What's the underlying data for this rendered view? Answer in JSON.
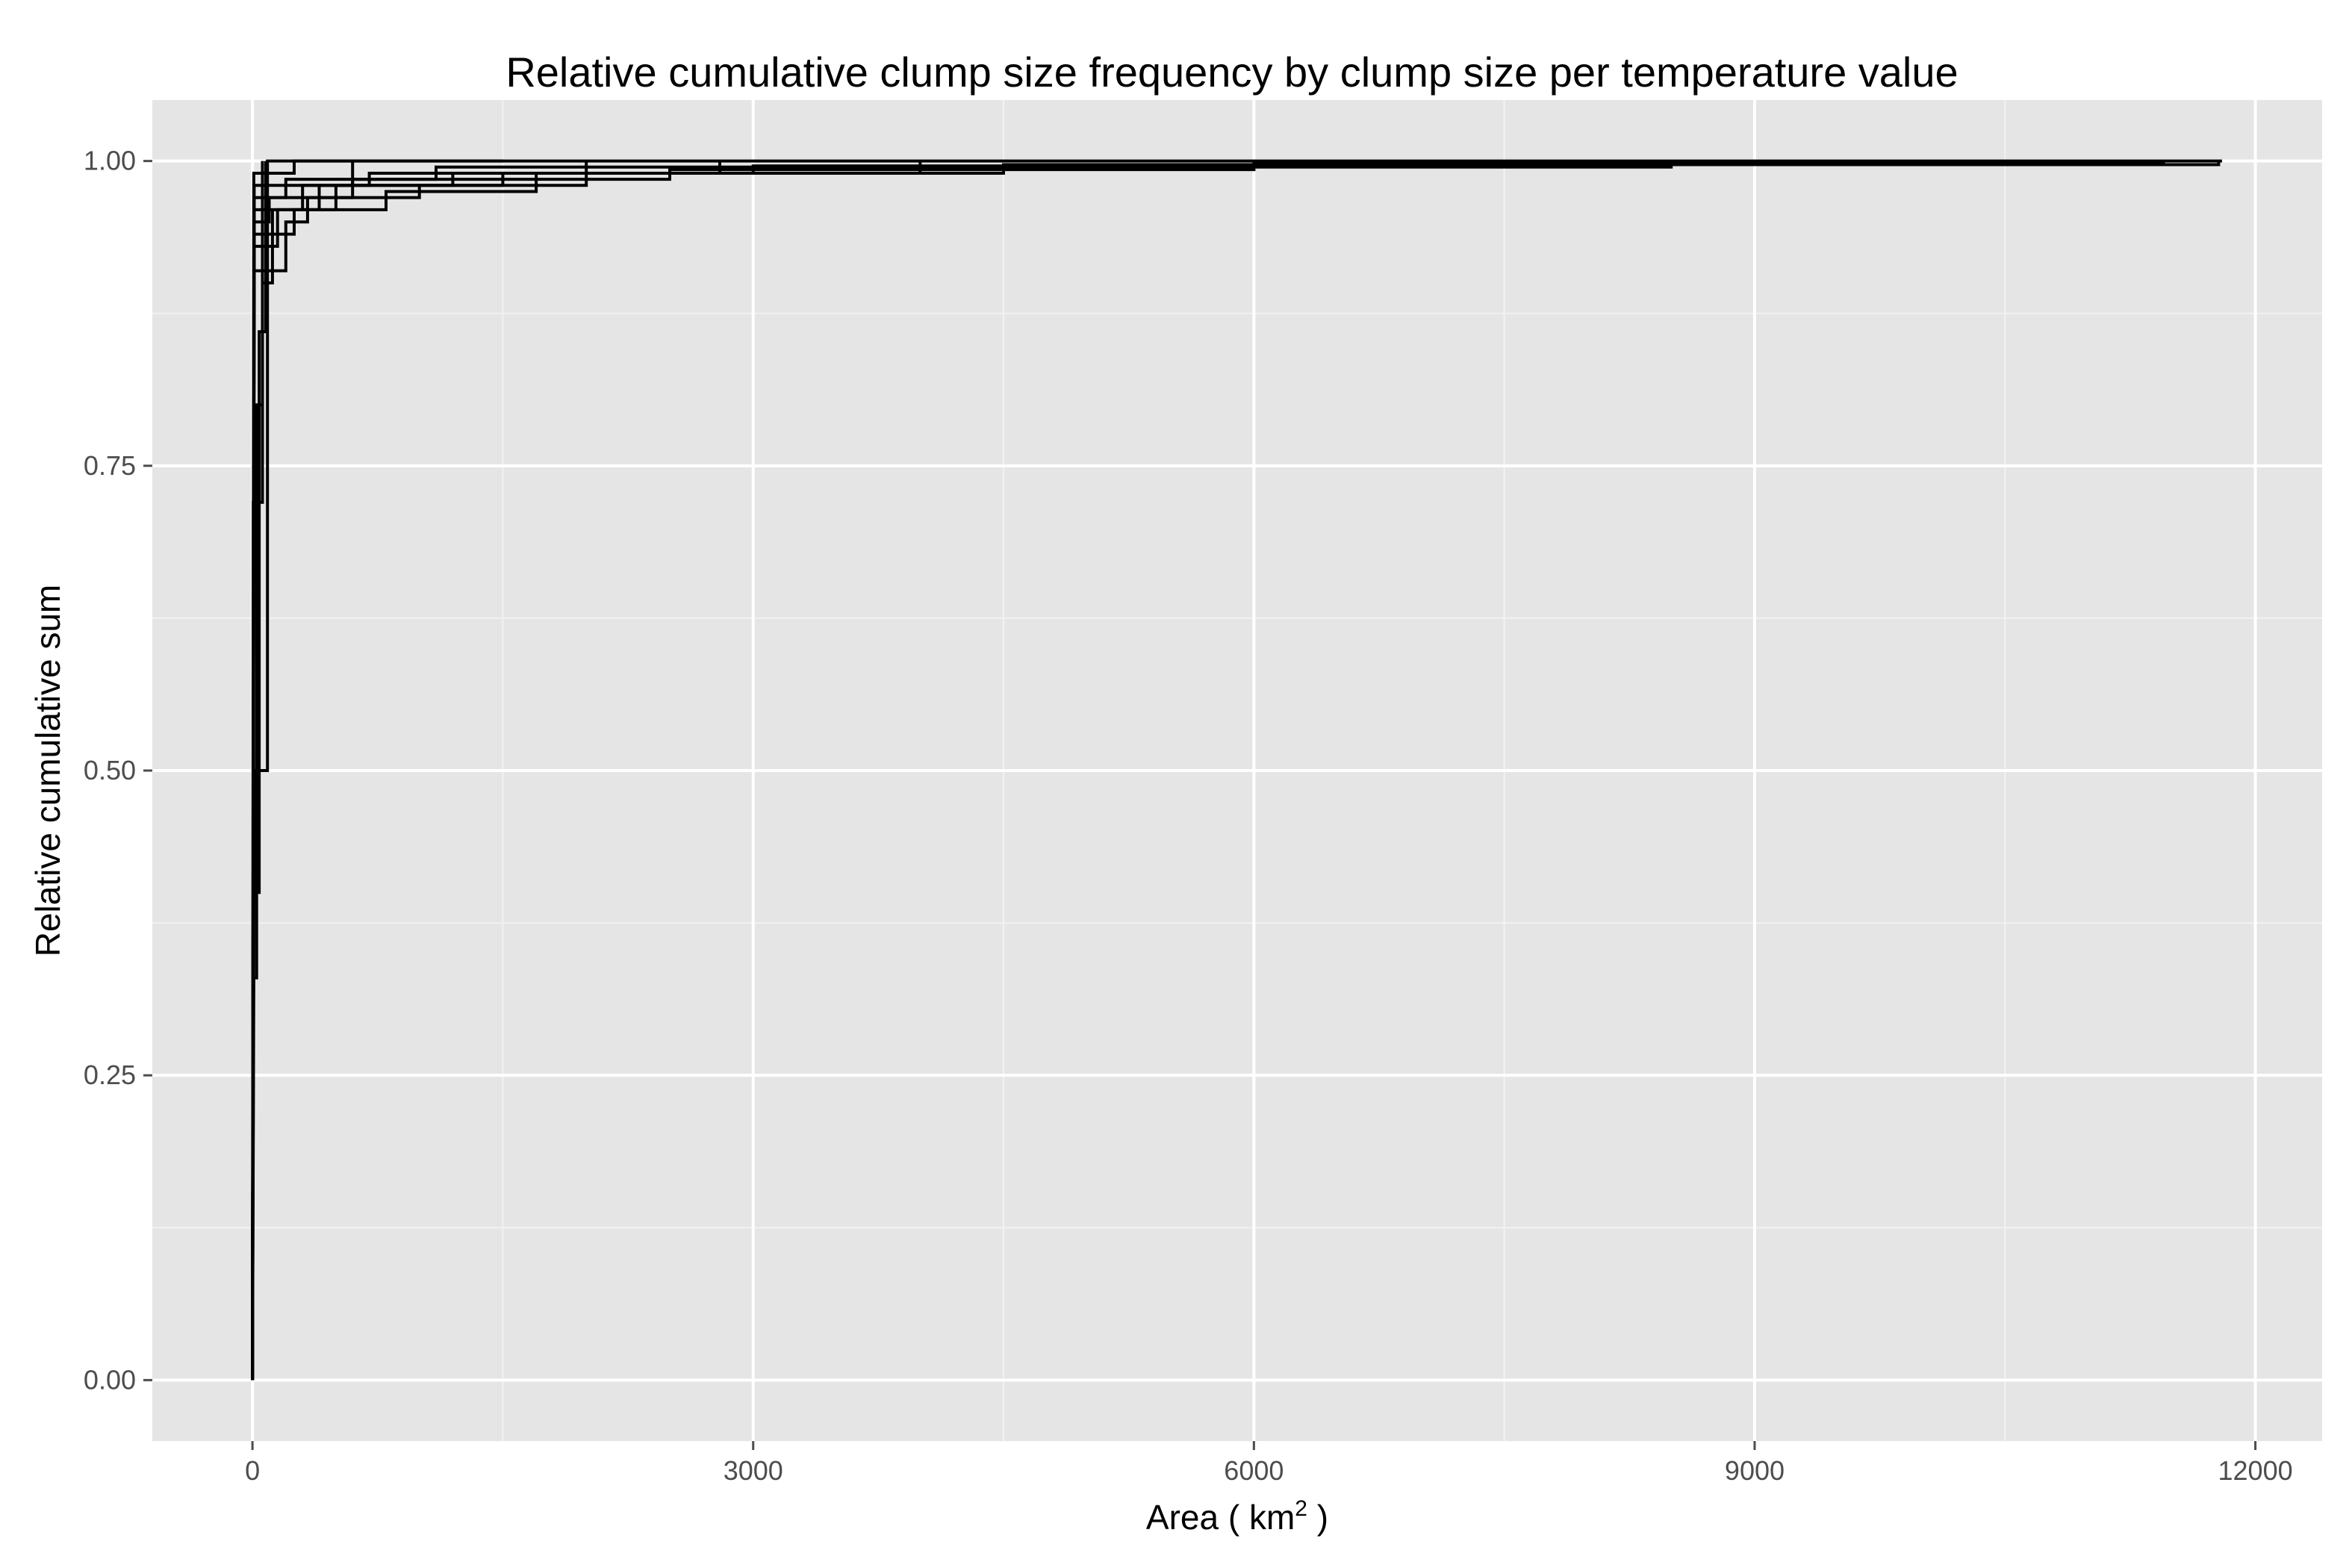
{
  "chart_data": {
    "type": "line",
    "step": true,
    "title": "Relative cumulative clump size frequency by clump size per temperature value",
    "xlabel": {
      "prefix": "Area ( km",
      "superscript": "2",
      "suffix": " )"
    },
    "ylabel": "Relative cumulative sum",
    "xlim": [
      -600,
      12400
    ],
    "ylim": [
      -0.05,
      1.05
    ],
    "x_ticks": [
      0,
      3000,
      6000,
      9000,
      12000
    ],
    "x_tick_labels": [
      "0",
      "3000",
      "6000",
      "9000",
      "12000"
    ],
    "y_ticks": [
      0,
      0.25,
      0.5,
      0.75,
      1
    ],
    "y_tick_labels": [
      "0.00",
      "0.25",
      "0.50",
      "0.75",
      "1.00"
    ],
    "grid": true,
    "legend": "none",
    "colors": {
      "panel": "#e5e5e5",
      "grid_major": "#ffffff",
      "grid_minor": "#f2f2f2",
      "line": "#000000",
      "tick": "#4d4d4d"
    },
    "series": [
      {
        "points": [
          [
            0,
            0
          ],
          [
            10,
            0.5
          ],
          [
            90,
            0.5
          ],
          [
            90,
            1
          ],
          [
            11800,
            1
          ]
        ]
      },
      {
        "points": [
          [
            0,
            0
          ],
          [
            5,
            0.4
          ],
          [
            40,
            0.4
          ],
          [
            40,
            0.86
          ],
          [
            80,
            0.86
          ],
          [
            80,
            1
          ]
        ]
      },
      {
        "points": [
          [
            0,
            0
          ],
          [
            5,
            0.72
          ],
          [
            60,
            0.72
          ],
          [
            60,
            0.9
          ],
          [
            120,
            0.9
          ],
          [
            120,
            0.96
          ],
          [
            300,
            0.96
          ],
          [
            300,
            0.98
          ],
          [
            600,
            0.98
          ],
          [
            600,
            1
          ]
        ]
      },
      {
        "points": [
          [
            0,
            0
          ],
          [
            10,
            0.93
          ],
          [
            150,
            0.93
          ],
          [
            150,
            0.96
          ],
          [
            500,
            0.96
          ],
          [
            500,
            0.98
          ],
          [
            1500,
            0.98
          ],
          [
            1500,
            0.99
          ],
          [
            3000,
            0.99
          ],
          [
            3000,
            0.996
          ],
          [
            6000,
            0.996
          ],
          [
            6000,
            1
          ]
        ]
      },
      {
        "points": [
          [
            0,
            0
          ],
          [
            10,
            0.91
          ],
          [
            200,
            0.91
          ],
          [
            200,
            0.95
          ],
          [
            330,
            0.95
          ],
          [
            330,
            0.97
          ],
          [
            1000,
            0.97
          ],
          [
            1000,
            0.98
          ],
          [
            2000,
            0.98
          ],
          [
            2000,
            0.99
          ],
          [
            4500,
            0.99
          ],
          [
            4500,
            0.997
          ],
          [
            11780,
            0.997
          ],
          [
            11780,
            1
          ]
        ]
      },
      {
        "points": [
          [
            0,
            0
          ],
          [
            10,
            0.95
          ],
          [
            100,
            0.95
          ],
          [
            100,
            0.97
          ],
          [
            600,
            0.97
          ],
          [
            600,
            0.985
          ],
          [
            2500,
            0.985
          ],
          [
            2500,
            0.993
          ],
          [
            6000,
            0.993
          ],
          [
            6000,
            0.998
          ],
          [
            11450,
            0.998
          ],
          [
            11450,
            1
          ]
        ]
      },
      {
        "points": [
          [
            0,
            0
          ],
          [
            10,
            0.94
          ],
          [
            250,
            0.94
          ],
          [
            250,
            0.96
          ],
          [
            800,
            0.96
          ],
          [
            800,
            0.975
          ],
          [
            1700,
            0.975
          ],
          [
            1700,
            0.99
          ],
          [
            4000,
            0.99
          ],
          [
            4000,
            1
          ]
        ]
      },
      {
        "points": [
          [
            0,
            0
          ],
          [
            10,
            0.96
          ],
          [
            400,
            0.96
          ],
          [
            400,
            0.98
          ],
          [
            1200,
            0.98
          ],
          [
            1200,
            0.99
          ],
          [
            2800,
            0.99
          ],
          [
            2800,
            1
          ]
        ]
      },
      {
        "points": [
          [
            0,
            0
          ],
          [
            10,
            0.97
          ],
          [
            200,
            0.97
          ],
          [
            200,
            0.985
          ],
          [
            1100,
            0.985
          ],
          [
            1100,
            0.995
          ],
          [
            8500,
            0.995
          ],
          [
            8500,
            1
          ]
        ]
      },
      {
        "points": [
          [
            0,
            0
          ],
          [
            10,
            0.98
          ],
          [
            700,
            0.98
          ],
          [
            700,
            0.99
          ],
          [
            2000,
            0.99
          ],
          [
            2000,
            1
          ]
        ]
      },
      {
        "points": [
          [
            0,
            0
          ],
          [
            8,
            0.99
          ],
          [
            250,
            0.99
          ],
          [
            250,
            1
          ],
          [
            1500,
            1
          ]
        ]
      },
      {
        "points": [
          [
            0,
            0
          ],
          [
            8,
            0.33
          ],
          [
            25,
            0.33
          ],
          [
            25,
            0.8
          ],
          [
            60,
            0.8
          ],
          [
            60,
            1
          ]
        ]
      }
    ]
  }
}
